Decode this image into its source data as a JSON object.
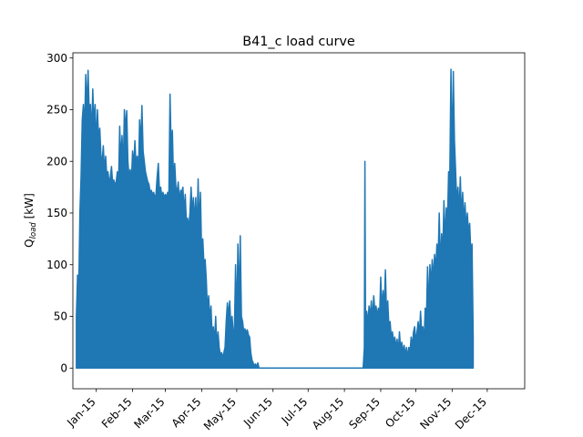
{
  "chart_data": {
    "type": "line",
    "title": "B41_c load curve",
    "ylabel_main": "Q",
    "ylabel_sub": "load",
    "ylabel_unit": " [kW]",
    "xlabel": "",
    "ylim": [
      -20,
      305
    ],
    "yticks": [
      0,
      50,
      100,
      150,
      200,
      250,
      300
    ],
    "xlim_days": [
      -20,
      366
    ],
    "xticks": [
      {
        "label": "Jan-15",
        "day": 0
      },
      {
        "label": "Feb-15",
        "day": 31
      },
      {
        "label": "Mar-15",
        "day": 59
      },
      {
        "label": "Apr-15",
        "day": 90
      },
      {
        "label": "May-15",
        "day": 120
      },
      {
        "label": "Jun-15",
        "day": 151
      },
      {
        "label": "Jul-15",
        "day": 181
      },
      {
        "label": "Aug-15",
        "day": 212
      },
      {
        "label": "Sep-15",
        "day": 243
      },
      {
        "label": "Oct-15",
        "day": 273
      },
      {
        "label": "Nov-15",
        "day": 304
      },
      {
        "label": "Dec-15",
        "day": 334
      }
    ],
    "series": [
      {
        "color": "#1f77b4",
        "peak_envelope": [
          [
            -17,
            50
          ],
          [
            -16,
            90
          ],
          [
            -15,
            75
          ],
          [
            -14,
            150
          ],
          [
            -13,
            185
          ],
          [
            -12,
            240
          ],
          [
            -11,
            255
          ],
          [
            -10,
            230
          ],
          [
            -9,
            284
          ],
          [
            -8,
            250
          ],
          [
            -7,
            288
          ],
          [
            -6,
            245
          ],
          [
            -5,
            255
          ],
          [
            -4,
            225
          ],
          [
            -3,
            270
          ],
          [
            -2,
            235
          ],
          [
            -1,
            255
          ],
          [
            0,
            215
          ],
          [
            1,
            250
          ],
          [
            2,
            220
          ],
          [
            3,
            232
          ],
          [
            4,
            205
          ],
          [
            5,
            200
          ],
          [
            6,
            215
          ],
          [
            7,
            190
          ],
          [
            8,
            205
          ],
          [
            9,
            185
          ],
          [
            10,
            190
          ],
          [
            11,
            178
          ],
          [
            12,
            185
          ],
          [
            13,
            195
          ],
          [
            14,
            178
          ],
          [
            15,
            182
          ],
          [
            16,
            177
          ],
          [
            17,
            180
          ],
          [
            18,
            190
          ],
          [
            19,
            176
          ],
          [
            20,
            234
          ],
          [
            21,
            200
          ],
          [
            22,
            225
          ],
          [
            23,
            190
          ],
          [
            24,
            250
          ],
          [
            25,
            230
          ],
          [
            26,
            249
          ],
          [
            27,
            200
          ],
          [
            28,
            185
          ],
          [
            29,
            192
          ],
          [
            30,
            180
          ],
          [
            31,
            210
          ],
          [
            32,
            195
          ],
          [
            33,
            220
          ],
          [
            34,
            195
          ],
          [
            35,
            205
          ],
          [
            36,
            185
          ],
          [
            37,
            240
          ],
          [
            38,
            215
          ],
          [
            39,
            254
          ],
          [
            40,
            210
          ],
          [
            41,
            200
          ],
          [
            42,
            190
          ],
          [
            43,
            185
          ],
          [
            44,
            180
          ],
          [
            45,
            178
          ],
          [
            46,
            170
          ],
          [
            47,
            172
          ],
          [
            48,
            168
          ],
          [
            49,
            170
          ],
          [
            50,
            165
          ],
          [
            51,
            168
          ],
          [
            52,
            185
          ],
          [
            53,
            198
          ],
          [
            54,
            170
          ],
          [
            55,
            175
          ],
          [
            56,
            166
          ],
          [
            57,
            170
          ],
          [
            58,
            165
          ],
          [
            59,
            168
          ],
          [
            60,
            165
          ],
          [
            61,
            170
          ],
          [
            62,
            166
          ],
          [
            63,
            265
          ],
          [
            64,
            210
          ],
          [
            65,
            230
          ],
          [
            66,
            180
          ],
          [
            67,
            198
          ],
          [
            68,
            175
          ],
          [
            69,
            170
          ],
          [
            70,
            180
          ],
          [
            71,
            160
          ],
          [
            72,
            172
          ],
          [
            73,
            170
          ],
          [
            74,
            175
          ],
          [
            75,
            150
          ],
          [
            76,
            168
          ],
          [
            77,
            140
          ],
          [
            78,
            145
          ],
          [
            79,
            135
          ],
          [
            80,
            150
          ],
          [
            81,
            175
          ],
          [
            82,
            150
          ],
          [
            83,
            165
          ],
          [
            84,
            140
          ],
          [
            85,
            165
          ],
          [
            86,
            130
          ],
          [
            87,
            183
          ],
          [
            88,
            135
          ],
          [
            89,
            170
          ],
          [
            90,
            110
          ],
          [
            91,
            125
          ],
          [
            92,
            100
          ],
          [
            93,
            105
          ],
          [
            94,
            85
          ],
          [
            95,
            55
          ],
          [
            96,
            70
          ],
          [
            97,
            45
          ],
          [
            98,
            60
          ],
          [
            99,
            30
          ],
          [
            100,
            40
          ],
          [
            101,
            25
          ],
          [
            102,
            50
          ],
          [
            103,
            20
          ],
          [
            104,
            35
          ],
          [
            105,
            20
          ],
          [
            106,
            12
          ],
          [
            107,
            15
          ],
          [
            108,
            10
          ],
          [
            109,
            15
          ],
          [
            110,
            20
          ],
          [
            111,
            45
          ],
          [
            112,
            63
          ],
          [
            113,
            50
          ],
          [
            114,
            65
          ],
          [
            115,
            40
          ],
          [
            116,
            50
          ],
          [
            117,
            35
          ],
          [
            118,
            35
          ],
          [
            119,
            100
          ],
          [
            120,
            45
          ],
          [
            121,
            120
          ],
          [
            122,
            60
          ],
          [
            123,
            128
          ],
          [
            124,
            50
          ],
          [
            125,
            45
          ],
          [
            126,
            35
          ],
          [
            127,
            38
          ],
          [
            128,
            34
          ],
          [
            129,
            37
          ],
          [
            130,
            32
          ],
          [
            131,
            30
          ],
          [
            132,
            15
          ],
          [
            133,
            8
          ],
          [
            134,
            5
          ],
          [
            135,
            2
          ],
          [
            136,
            4
          ],
          [
            137,
            1
          ],
          [
            138,
            5
          ],
          [
            139,
            0
          ],
          [
            140,
            0
          ],
          [
            228,
            0
          ],
          [
            229,
            20
          ],
          [
            229.5,
            200
          ],
          [
            230,
            45
          ],
          [
            231,
            55
          ],
          [
            232,
            42
          ],
          [
            233,
            60
          ],
          [
            234,
            50
          ],
          [
            235,
            65
          ],
          [
            236,
            45
          ],
          [
            237,
            70
          ],
          [
            238,
            55
          ],
          [
            239,
            60
          ],
          [
            240,
            50
          ],
          [
            241,
            58
          ],
          [
            242,
            48
          ],
          [
            243,
            88
          ],
          [
            244,
            55
          ],
          [
            245,
            75
          ],
          [
            246,
            58
          ],
          [
            247,
            95
          ],
          [
            248,
            50
          ],
          [
            249,
            65
          ],
          [
            250,
            40
          ],
          [
            251,
            45
          ],
          [
            252,
            30
          ],
          [
            253,
            35
          ],
          [
            254,
            25
          ],
          [
            255,
            30
          ],
          [
            256,
            20
          ],
          [
            257,
            28
          ],
          [
            258,
            15
          ],
          [
            259,
            35
          ],
          [
            260,
            18
          ],
          [
            261,
            25
          ],
          [
            262,
            15
          ],
          [
            263,
            22
          ],
          [
            264,
            12
          ],
          [
            265,
            20
          ],
          [
            266,
            10
          ],
          [
            267,
            20
          ],
          [
            268,
            15
          ],
          [
            269,
            30
          ],
          [
            270,
            20
          ],
          [
            271,
            35
          ],
          [
            272,
            40
          ],
          [
            273,
            25
          ],
          [
            274,
            35
          ],
          [
            275,
            45
          ],
          [
            276,
            30
          ],
          [
            277,
            55
          ],
          [
            278,
            35
          ],
          [
            279,
            40
          ],
          [
            280,
            25
          ],
          [
            281,
            58
          ],
          [
            282,
            45
          ],
          [
            283,
            98
          ],
          [
            284,
            55
          ],
          [
            285,
            100
          ],
          [
            286,
            80
          ],
          [
            287,
            105
          ],
          [
            288,
            85
          ],
          [
            289,
            110
          ],
          [
            290,
            95
          ],
          [
            291,
            120
          ],
          [
            292,
            105
          ],
          [
            293,
            150
          ],
          [
            294,
            95
          ],
          [
            295,
            130
          ],
          [
            296,
            110
          ],
          [
            297,
            162
          ],
          [
            298,
            120
          ],
          [
            299,
            155
          ],
          [
            300,
            140
          ],
          [
            301,
            190
          ],
          [
            302,
            185
          ],
          [
            303,
            289
          ],
          [
            304,
            200
          ],
          [
            305,
            287
          ],
          [
            306,
            220
          ],
          [
            307,
            190
          ],
          [
            308,
            160
          ],
          [
            309,
            175
          ],
          [
            310,
            150
          ],
          [
            311,
            185
          ],
          [
            312,
            145
          ],
          [
            313,
            170
          ],
          [
            314,
            140
          ],
          [
            315,
            160
          ],
          [
            316,
            135
          ],
          [
            317,
            150
          ],
          [
            318,
            130
          ],
          [
            319,
            140
          ],
          [
            320,
            110
          ],
          [
            321,
            120
          ],
          [
            322,
            30
          ]
        ]
      }
    ]
  }
}
